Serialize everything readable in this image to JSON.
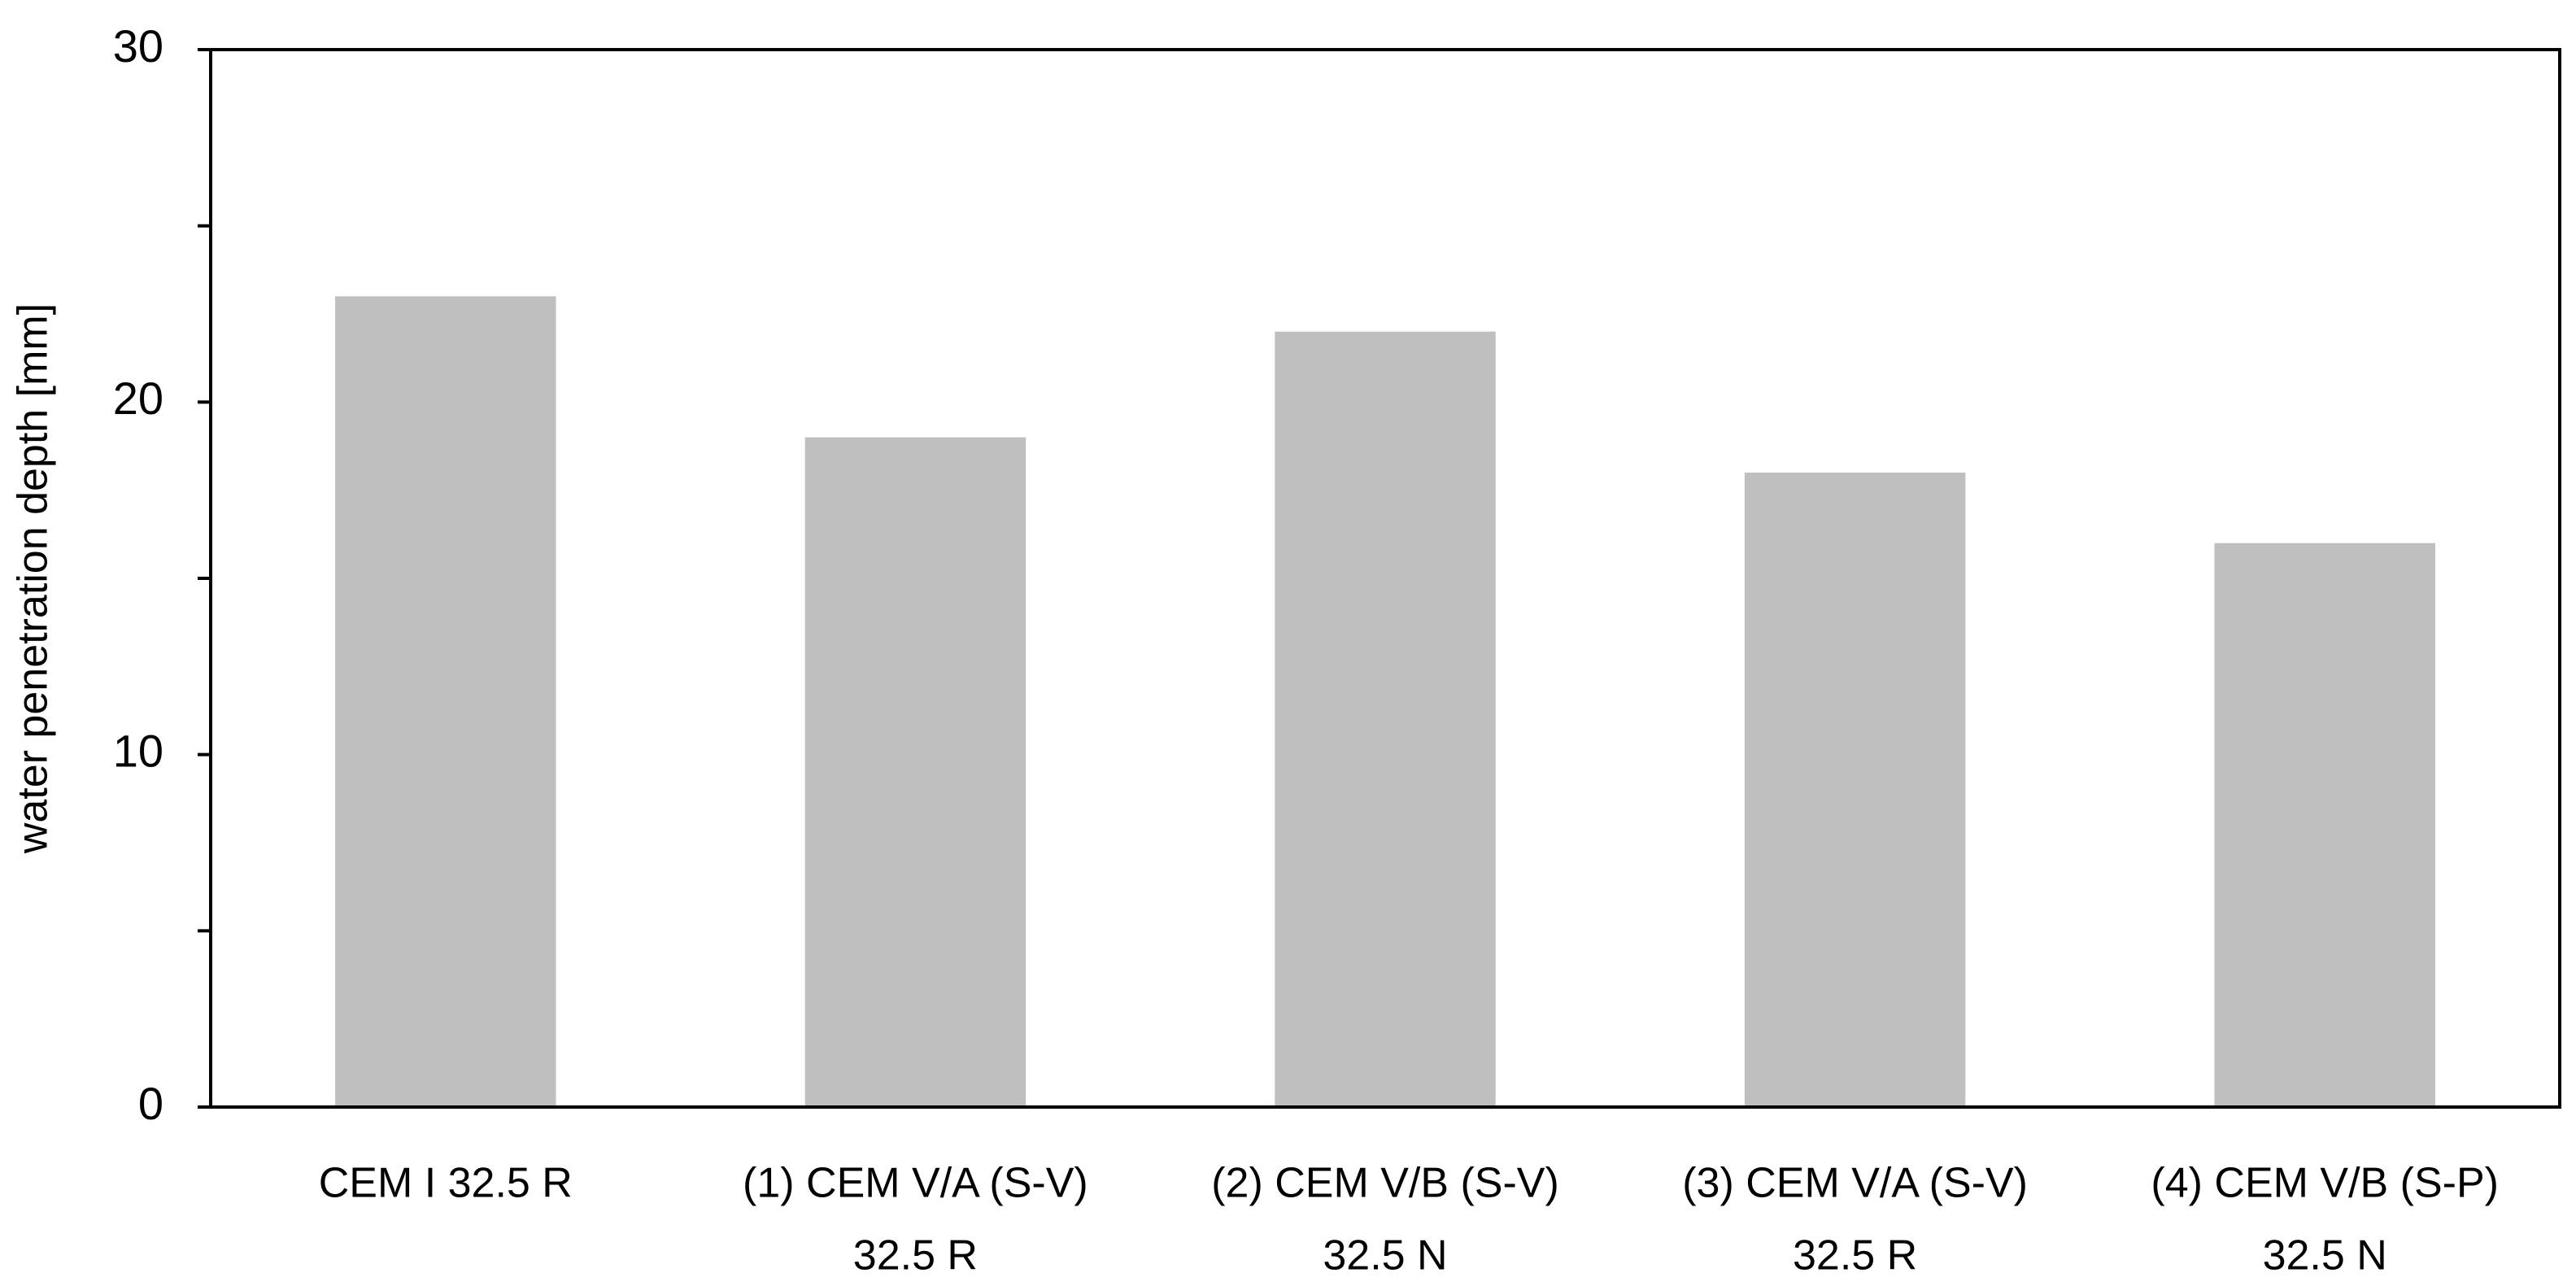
{
  "chart_data": {
    "type": "bar",
    "y_label": "water penetration depth [mm]",
    "categories": [
      [
        "CEM I 32.5 R"
      ],
      [
        "(1) CEM V/A (S-V)",
        "32.5 R"
      ],
      [
        "(2) CEM V/B (S-V)",
        "32.5 N"
      ],
      [
        "(3) CEM V/A (S-V)",
        "32.5 R"
      ],
      [
        "(4) CEM V/B (S-P)",
        "32.5 N"
      ]
    ],
    "values": [
      23,
      19,
      22,
      18,
      16
    ],
    "color": "#bfbfbf",
    "ylim": [
      0,
      30
    ],
    "yticks": [
      0,
      10,
      20,
      30
    ],
    "minor_yticks": [
      5,
      15,
      25
    ],
    "grid": false
  }
}
